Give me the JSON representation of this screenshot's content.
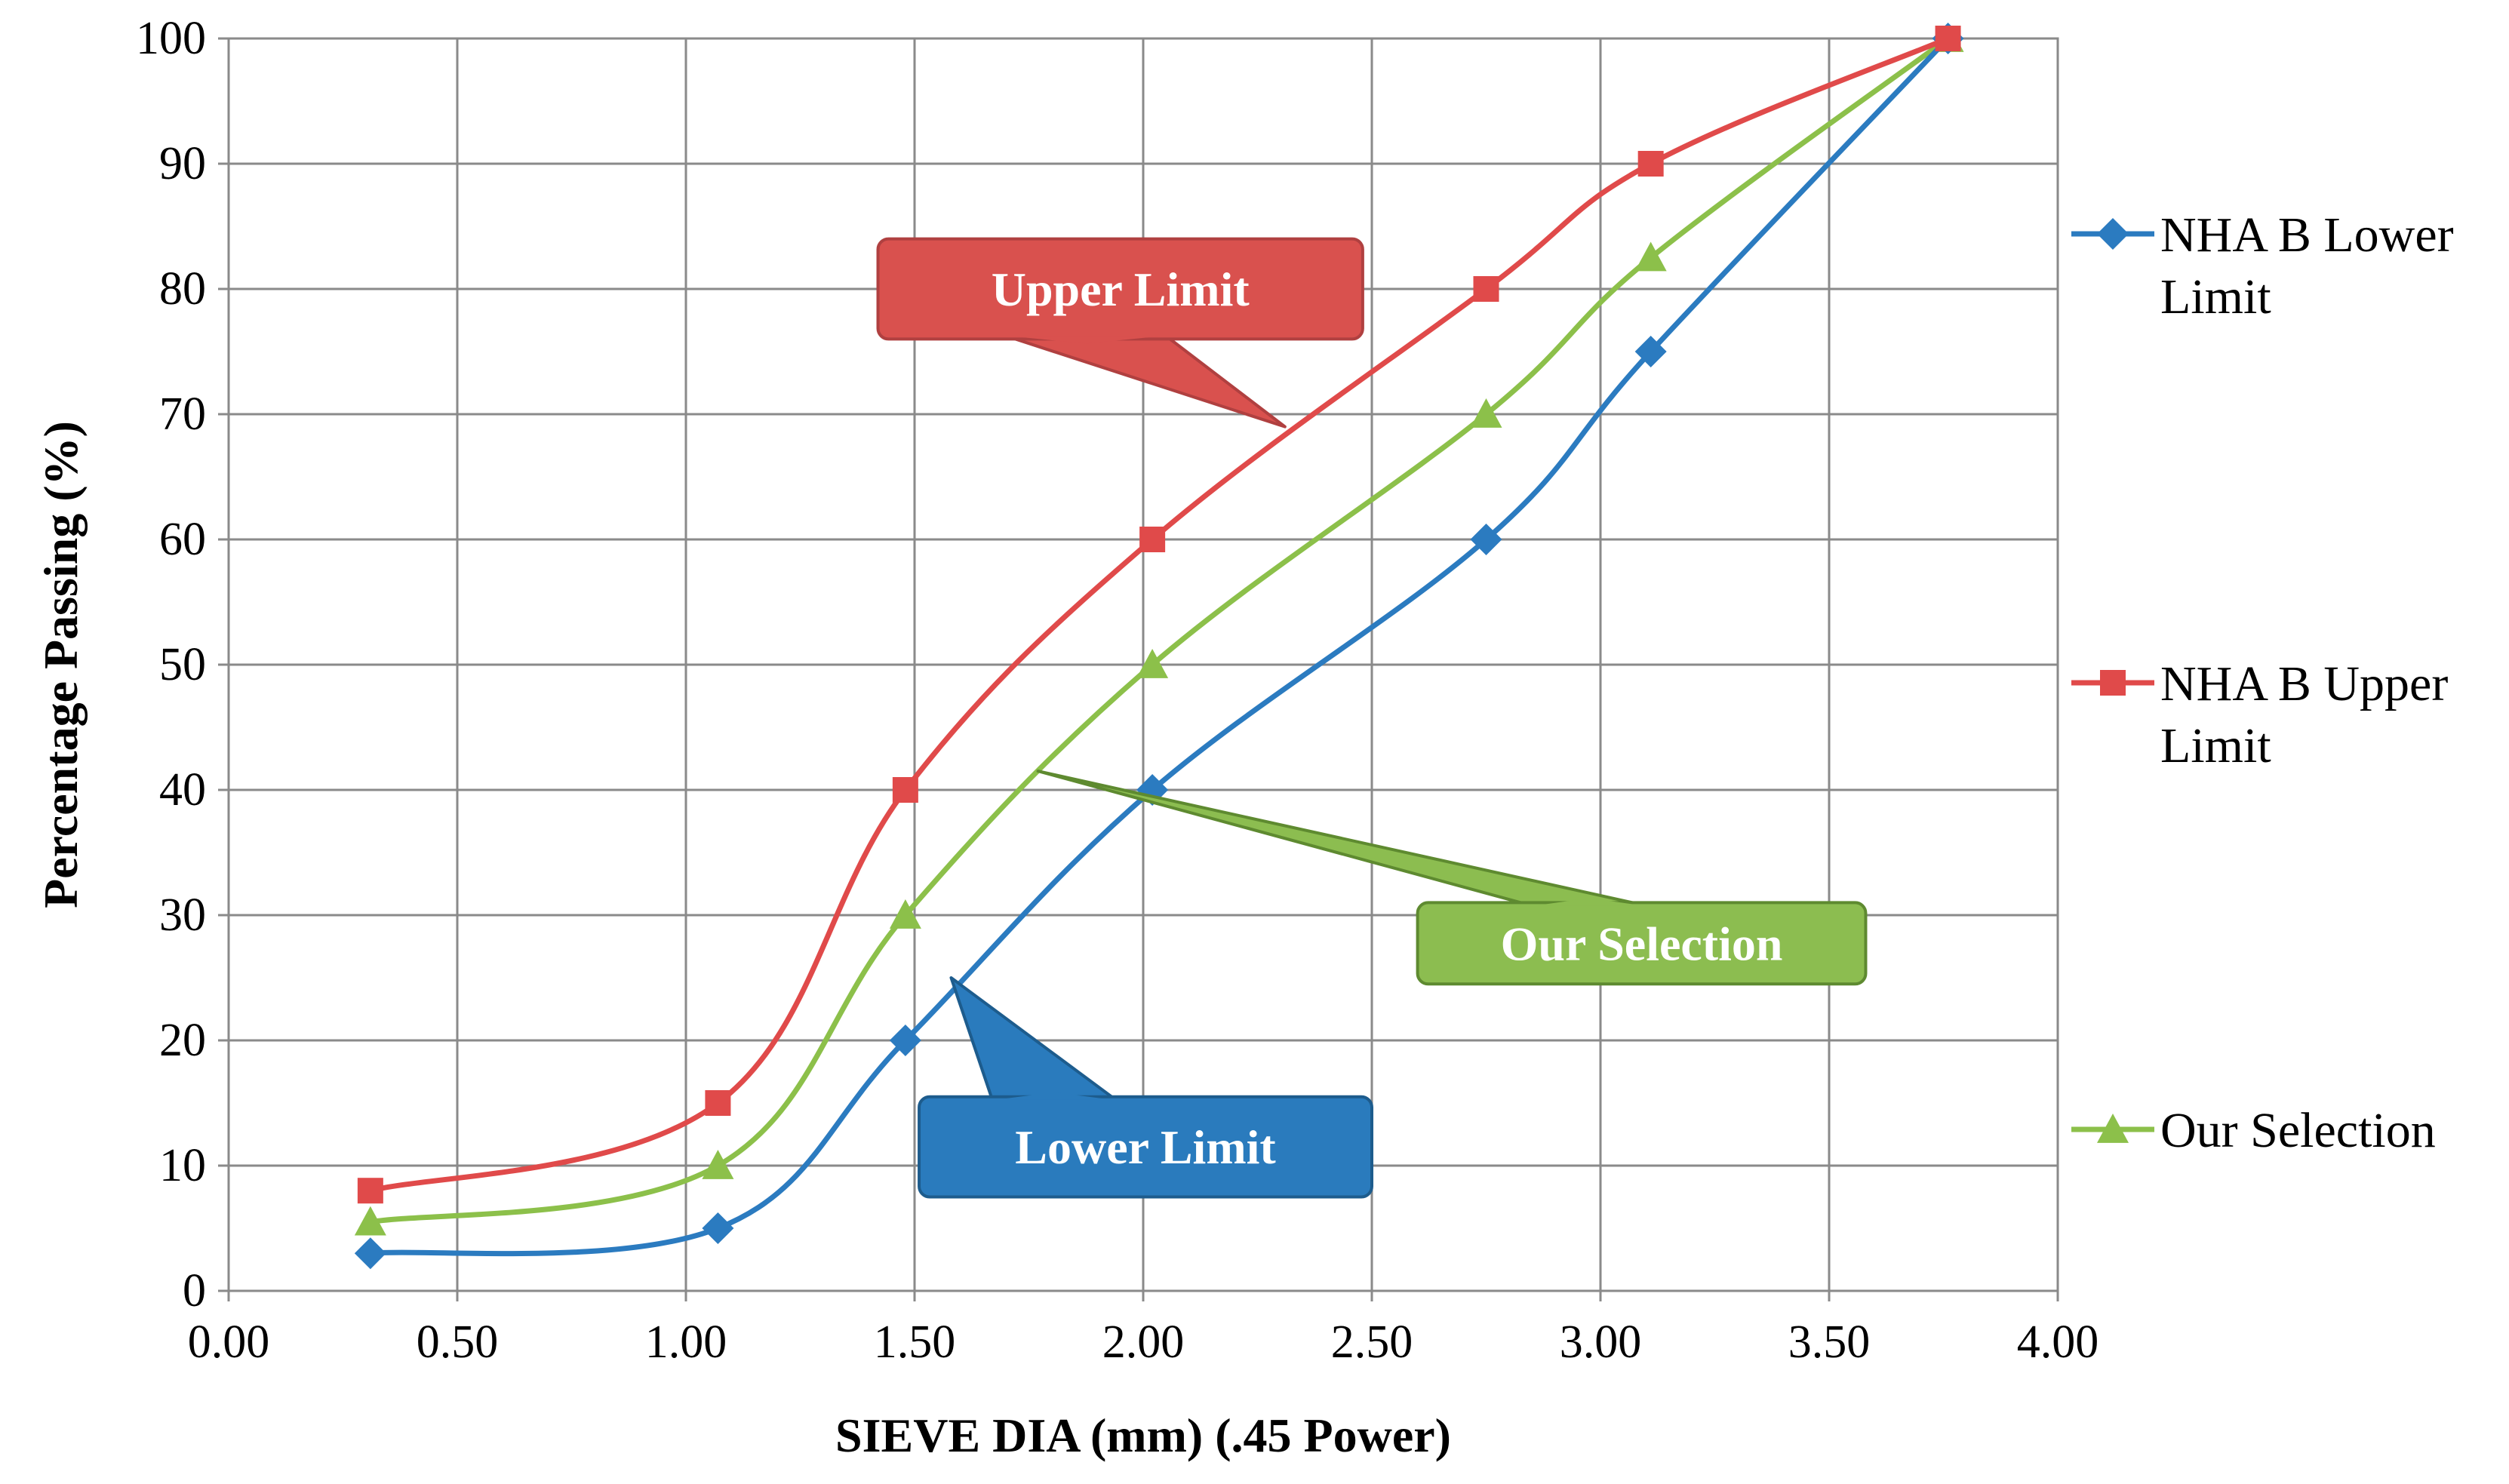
{
  "chart_data": {
    "type": "line",
    "title": "",
    "xlabel": "SIEVE DIA (mm) (.45 Power)",
    "ylabel": "Percentage Passing (%)",
    "xlim": [
      0,
      4
    ],
    "ylim": [
      0,
      100
    ],
    "x_ticks": [
      "0.00",
      "0.50",
      "1.00",
      "1.50",
      "2.00",
      "2.50",
      "3.00",
      "3.50",
      "4.00"
    ],
    "y_ticks": [
      "0",
      "10",
      "20",
      "30",
      "40",
      "50",
      "60",
      "70",
      "80",
      "90",
      "100"
    ],
    "grid": true,
    "legend_position": "right",
    "series": [
      {
        "name": "NHA B Lower Limit",
        "legend_lines": [
          "NHA B Lower",
          "Limit"
        ],
        "color": "#2b7bc0",
        "marker": "diamond",
        "x": [
          0.31,
          1.07,
          1.48,
          2.02,
          2.75,
          3.11,
          3.76
        ],
        "y": [
          3,
          5,
          20,
          40,
          60,
          75,
          100
        ]
      },
      {
        "name": "NHA B Upper Limit",
        "legend_lines": [
          "NHA B Upper",
          "Limit"
        ],
        "color": "#e04a4a",
        "marker": "square",
        "x": [
          0.31,
          1.07,
          1.48,
          2.02,
          2.75,
          3.11,
          3.76
        ],
        "y": [
          8,
          15,
          40,
          60,
          80,
          90,
          100
        ]
      },
      {
        "name": "Our Selection",
        "legend_lines": [
          "Our Selection"
        ],
        "color": "#8cc04a",
        "marker": "triangle",
        "x": [
          0.31,
          1.07,
          1.48,
          2.02,
          2.75,
          3.11,
          3.76
        ],
        "y": [
          5.5,
          10,
          30,
          50,
          70,
          82.5,
          100
        ]
      }
    ],
    "annotations": [
      {
        "text": "Upper Limit",
        "fill": "#d9514e",
        "stroke": "#b04040",
        "box_x_data": [
          1.42,
          2.48
        ],
        "box_y_data": [
          76,
          84
        ],
        "pointer_tip": [
          2.31,
          69
        ],
        "pointer_base_x": [
          1.7,
          2.05
        ]
      },
      {
        "text": "Our Selection",
        "fill": "#8cbd50",
        "stroke": "#5e8a30",
        "box_x_data": [
          2.6,
          3.58
        ],
        "box_y_data": [
          24.5,
          31
        ],
        "pointer_tip": [
          1.77,
          41.5
        ],
        "pointer_base_x": [
          2.85,
          3.1
        ]
      },
      {
        "text": "Lower Limit",
        "fill": "#2a7bbd",
        "stroke": "#1d5c8d",
        "box_x_data": [
          1.51,
          2.5
        ],
        "box_y_data": [
          7.5,
          15.5
        ],
        "pointer_tip": [
          1.58,
          25
        ],
        "pointer_base_x": [
          1.67,
          1.94
        ]
      }
    ]
  }
}
